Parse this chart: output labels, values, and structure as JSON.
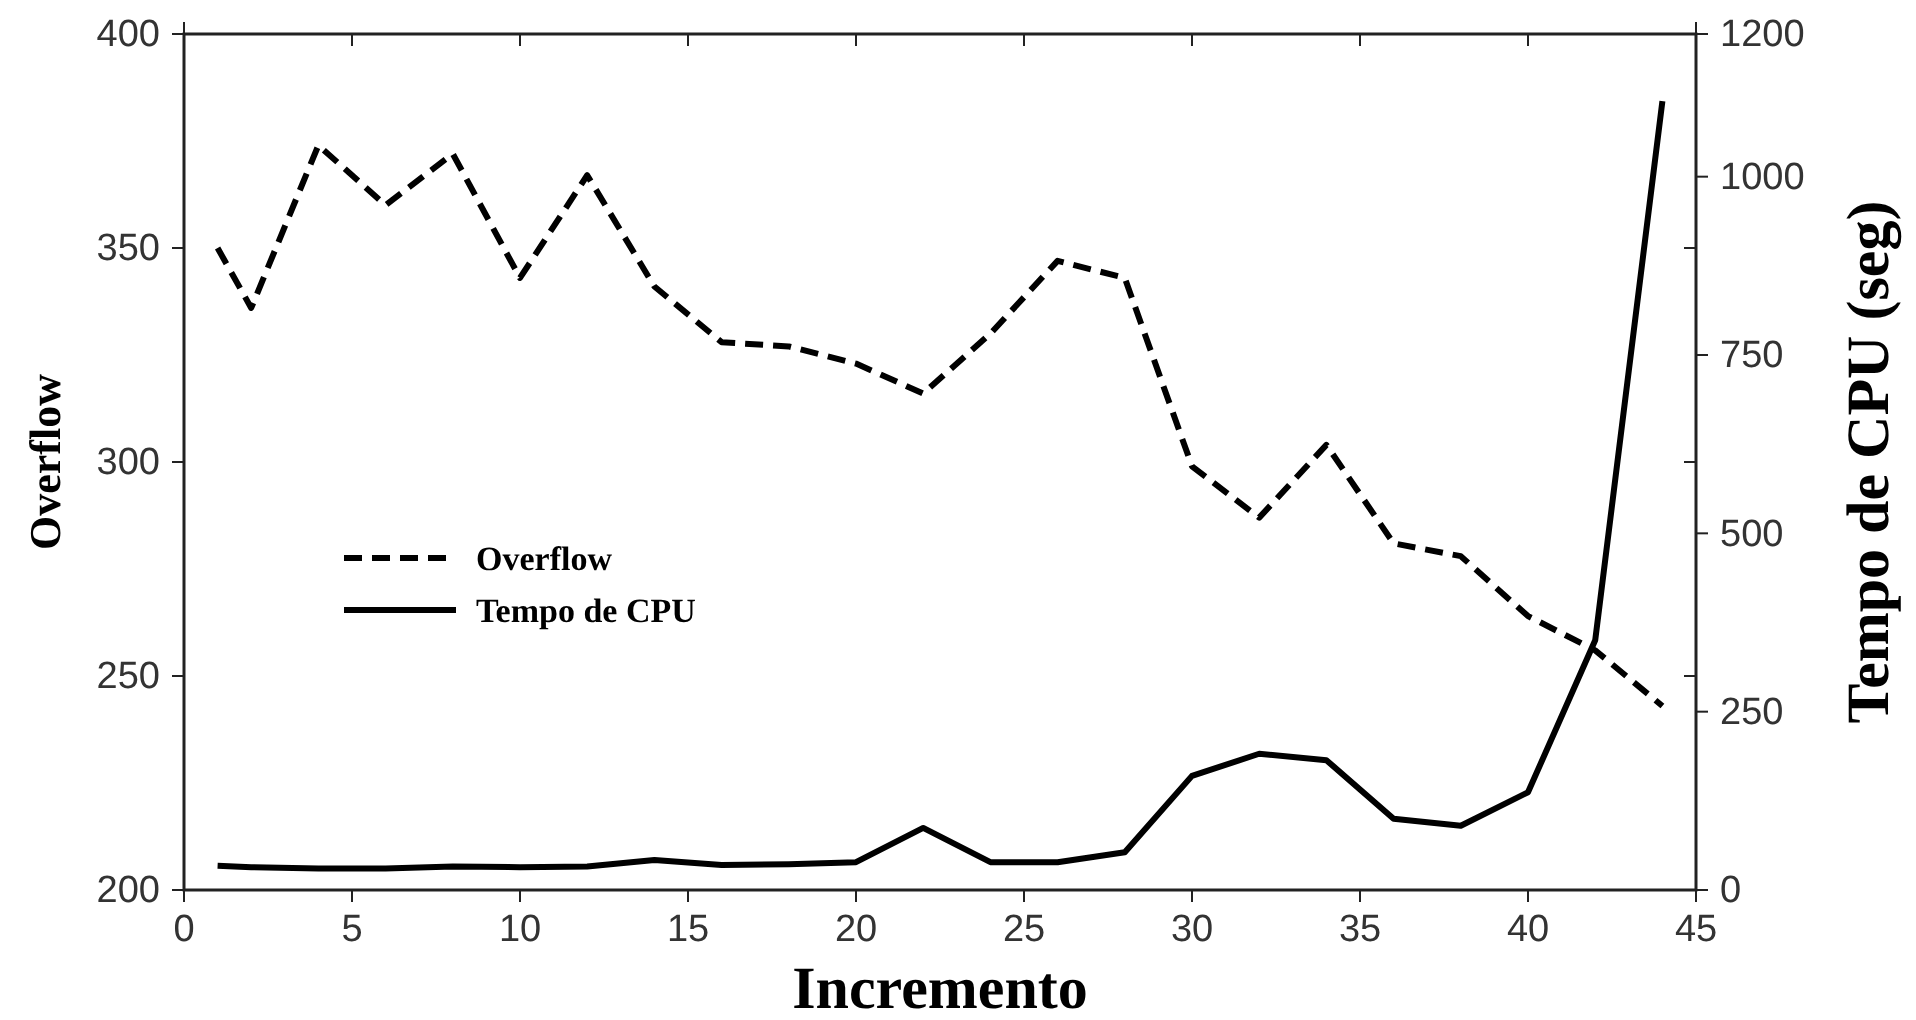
{
  "chart_data": {
    "type": "line",
    "xlabel": "Incremento",
    "ylabel": "Overflow",
    "y2label": "Tempo de CPU (seg)",
    "x": [
      1,
      2,
      4,
      6,
      8,
      10,
      12,
      14,
      16,
      18,
      20,
      22,
      24,
      26,
      28,
      30,
      32,
      34,
      36,
      38,
      40,
      42,
      44
    ],
    "xlim": [
      0,
      45
    ],
    "xticks": [
      0,
      5,
      10,
      15,
      20,
      25,
      30,
      35,
      40,
      45
    ],
    "ylim": [
      200,
      400
    ],
    "yticks": [
      200,
      250,
      300,
      350,
      400
    ],
    "y2lim": [
      0,
      1200
    ],
    "y2ticks": [
      0,
      250,
      500,
      750,
      1000,
      1200
    ],
    "legend": "left",
    "grid": false,
    "marker": "none",
    "series": [
      {
        "name": "Overflow",
        "color": "#000000",
        "line_style": "dashed",
        "values": [
          350,
          336,
          374,
          360,
          372,
          343,
          367,
          341,
          328,
          327,
          323,
          316,
          330,
          347,
          343,
          299,
          287,
          304,
          281,
          278,
          264,
          256,
          243
        ]
      },
      {
        "name": "Tempo de CPU",
        "color": "#000000",
        "line_style": "solid",
        "axis": "y2",
        "values": [
          34,
          32,
          30,
          30,
          33,
          32,
          33,
          42,
          35,
          36,
          39,
          87,
          39,
          39,
          53,
          160,
          191,
          182,
          100,
          90,
          137,
          350,
          1106
        ]
      }
    ]
  }
}
